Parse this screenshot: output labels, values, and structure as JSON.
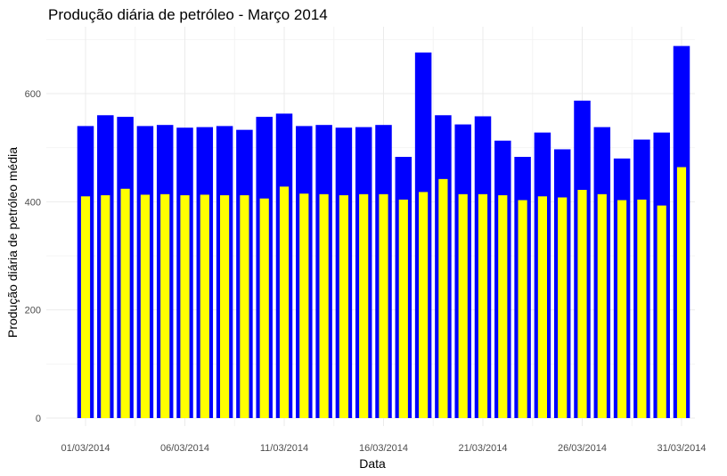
{
  "chart_data": {
    "type": "bar",
    "title": "Produção diária de petróleo - Março 2014",
    "xlabel": "Data",
    "ylabel": "Produção diária de petróleo média",
    "categories": [
      "01/03/2014",
      "02/03/2014",
      "03/03/2014",
      "04/03/2014",
      "05/03/2014",
      "06/03/2014",
      "07/03/2014",
      "08/03/2014",
      "09/03/2014",
      "10/03/2014",
      "11/03/2014",
      "12/03/2014",
      "13/03/2014",
      "14/03/2014",
      "15/03/2014",
      "16/03/2014",
      "17/03/2014",
      "18/03/2014",
      "19/03/2014",
      "20/03/2014",
      "21/03/2014",
      "22/03/2014",
      "23/03/2014",
      "24/03/2014",
      "25/03/2014",
      "26/03/2014",
      "27/03/2014",
      "28/03/2014",
      "29/03/2014",
      "30/03/2014",
      "31/03/2014"
    ],
    "x_tick_labels": [
      "01/03/2014",
      "06/03/2014",
      "11/03/2014",
      "16/03/2014",
      "21/03/2014",
      "26/03/2014",
      "31/03/2014"
    ],
    "y_ticks": [
      0,
      200,
      400,
      600
    ],
    "ylim": [
      0,
      700
    ],
    "grid": true,
    "series": [
      {
        "color": "#0000ff",
        "values": [
          540,
          560,
          557,
          540,
          542,
          537,
          538,
          540,
          533,
          557,
          563,
          540,
          542,
          537,
          538,
          542,
          483,
          676,
          560,
          543,
          558,
          513,
          483,
          528,
          497,
          587,
          538,
          480,
          515,
          528,
          688
        ]
      },
      {
        "color": "#ffff00",
        "values": [
          410,
          412,
          424,
          413,
          414,
          412,
          413,
          412,
          412,
          406,
          428,
          415,
          414,
          412,
          414,
          414,
          404,
          418,
          442,
          414,
          414,
          412,
          403,
          410,
          408,
          422,
          414,
          403,
          404,
          393,
          464
        ]
      }
    ]
  }
}
